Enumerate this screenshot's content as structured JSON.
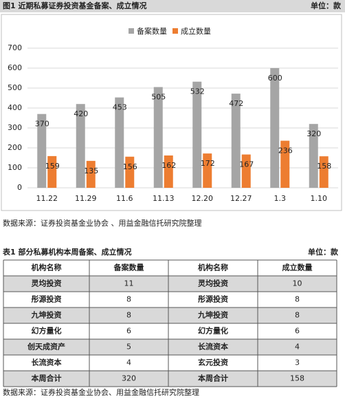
{
  "figure": {
    "title": "图1 近期私募证券投资基金备案、成立情况",
    "unit": "单位：款"
  },
  "chart_data": {
    "type": "bar",
    "categories": [
      "11.22",
      "11.29",
      "11.6",
      "11.13",
      "12.20",
      "12.27",
      "1.3",
      "1.10"
    ],
    "series": [
      {
        "name": "备案数量",
        "color": "#a5a5a5",
        "values": [
          370,
          420,
          453,
          505,
          532,
          472,
          600,
          320
        ]
      },
      {
        "name": "成立数量",
        "color": "#ed7d31",
        "values": [
          159,
          135,
          156,
          162,
          172,
          167,
          236,
          158
        ]
      }
    ],
    "ylim": [
      0,
      700
    ],
    "yticks": [
      0,
      100,
      200,
      300,
      400,
      500,
      600,
      700
    ],
    "grid": true,
    "legend": "top"
  },
  "figure_source": "数据来源：证券投资基金业协会 、用益金融信托研究院整理",
  "table": {
    "title": "表1 部分私募机构本周备案、成立情况",
    "unit": "单位：款",
    "header": [
      "机构名称",
      "备案数量",
      "机构名称",
      "成立数量"
    ],
    "rows": [
      [
        "灵均投资",
        11,
        "灵均投资",
        10
      ],
      [
        "彤源投资",
        8,
        "彤源投资",
        8
      ],
      [
        "九坤投资",
        8,
        "九坤投资",
        8
      ],
      [
        "幻方量化",
        6,
        "幻方量化",
        6
      ],
      [
        "创天成资产",
        5,
        "长流资本",
        4
      ],
      [
        "长流资本",
        4,
        "玄元投资",
        3
      ],
      [
        "本周合计",
        320,
        "本周合计",
        158
      ]
    ]
  },
  "table_source": "数据来源：证券投资基金业协会、用益金融信托研究院整理"
}
